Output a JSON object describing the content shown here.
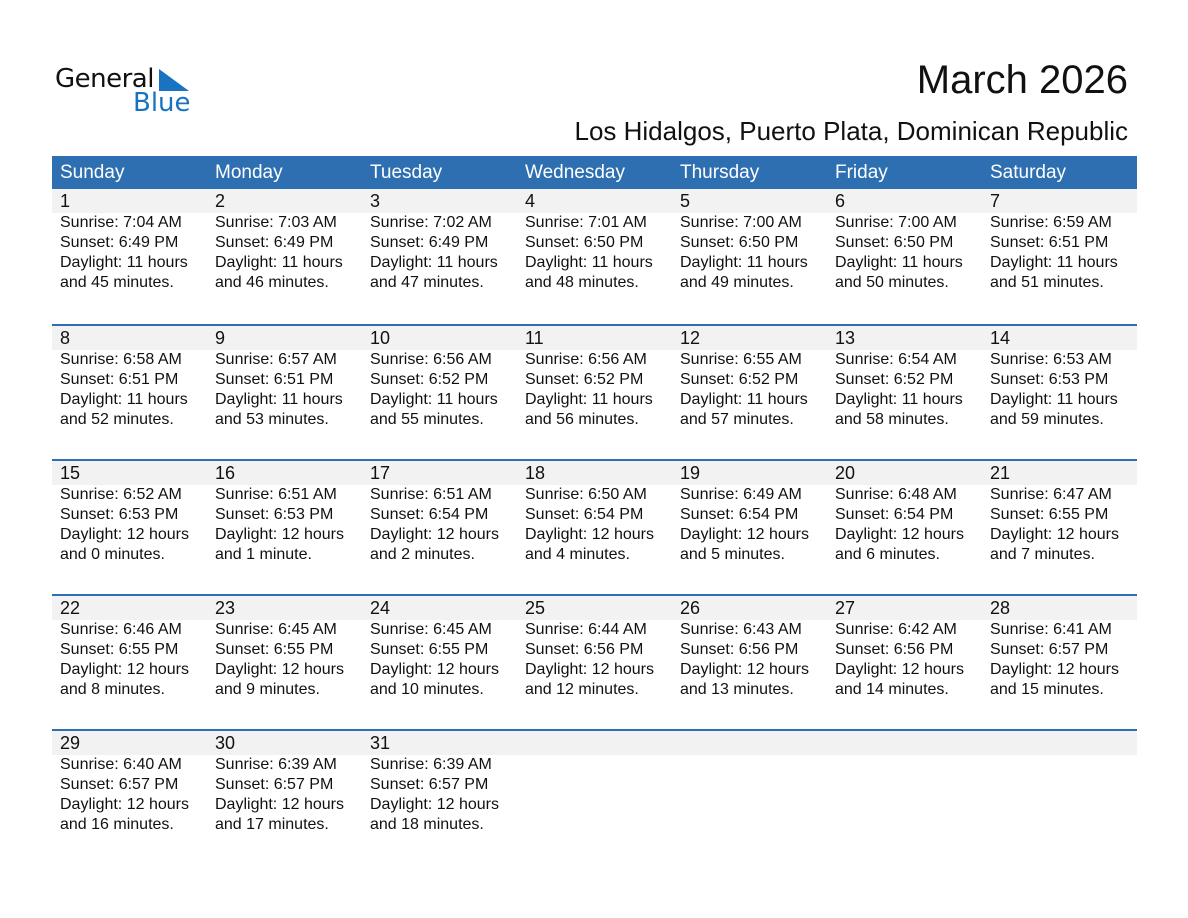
{
  "logo": {
    "line1": "General",
    "line2": "Blue",
    "accent": "#1a73c0"
  },
  "title": "March 2026",
  "location": "Los Hidalgos, Puerto Plata, Dominican Republic",
  "header_color": "#2e6fb2",
  "weekdays": [
    "Sunday",
    "Monday",
    "Tuesday",
    "Wednesday",
    "Thursday",
    "Friday",
    "Saturday"
  ],
  "weeks": [
    [
      {
        "day": "1",
        "sunrise": "Sunrise: 7:04 AM",
        "sunset": "Sunset: 6:49 PM",
        "daylight": "Daylight: 11 hours",
        "minutes": "and 45 minutes."
      },
      {
        "day": "2",
        "sunrise": "Sunrise: 7:03 AM",
        "sunset": "Sunset: 6:49 PM",
        "daylight": "Daylight: 11 hours",
        "minutes": "and 46 minutes."
      },
      {
        "day": "3",
        "sunrise": "Sunrise: 7:02 AM",
        "sunset": "Sunset: 6:49 PM",
        "daylight": "Daylight: 11 hours",
        "minutes": "and 47 minutes."
      },
      {
        "day": "4",
        "sunrise": "Sunrise: 7:01 AM",
        "sunset": "Sunset: 6:50 PM",
        "daylight": "Daylight: 11 hours",
        "minutes": "and 48 minutes."
      },
      {
        "day": "5",
        "sunrise": "Sunrise: 7:00 AM",
        "sunset": "Sunset: 6:50 PM",
        "daylight": "Daylight: 11 hours",
        "minutes": "and 49 minutes."
      },
      {
        "day": "6",
        "sunrise": "Sunrise: 7:00 AM",
        "sunset": "Sunset: 6:50 PM",
        "daylight": "Daylight: 11 hours",
        "minutes": "and 50 minutes."
      },
      {
        "day": "7",
        "sunrise": "Sunrise: 6:59 AM",
        "sunset": "Sunset: 6:51 PM",
        "daylight": "Daylight: 11 hours",
        "minutes": "and 51 minutes."
      }
    ],
    [
      {
        "day": "8",
        "sunrise": "Sunrise: 6:58 AM",
        "sunset": "Sunset: 6:51 PM",
        "daylight": "Daylight: 11 hours",
        "minutes": "and 52 minutes."
      },
      {
        "day": "9",
        "sunrise": "Sunrise: 6:57 AM",
        "sunset": "Sunset: 6:51 PM",
        "daylight": "Daylight: 11 hours",
        "minutes": "and 53 minutes."
      },
      {
        "day": "10",
        "sunrise": "Sunrise: 6:56 AM",
        "sunset": "Sunset: 6:52 PM",
        "daylight": "Daylight: 11 hours",
        "minutes": "and 55 minutes."
      },
      {
        "day": "11",
        "sunrise": "Sunrise: 6:56 AM",
        "sunset": "Sunset: 6:52 PM",
        "daylight": "Daylight: 11 hours",
        "minutes": "and 56 minutes."
      },
      {
        "day": "12",
        "sunrise": "Sunrise: 6:55 AM",
        "sunset": "Sunset: 6:52 PM",
        "daylight": "Daylight: 11 hours",
        "minutes": "and 57 minutes."
      },
      {
        "day": "13",
        "sunrise": "Sunrise: 6:54 AM",
        "sunset": "Sunset: 6:52 PM",
        "daylight": "Daylight: 11 hours",
        "minutes": "and 58 minutes."
      },
      {
        "day": "14",
        "sunrise": "Sunrise: 6:53 AM",
        "sunset": "Sunset: 6:53 PM",
        "daylight": "Daylight: 11 hours",
        "minutes": "and 59 minutes."
      }
    ],
    [
      {
        "day": "15",
        "sunrise": "Sunrise: 6:52 AM",
        "sunset": "Sunset: 6:53 PM",
        "daylight": "Daylight: 12 hours",
        "minutes": "and 0 minutes."
      },
      {
        "day": "16",
        "sunrise": "Sunrise: 6:51 AM",
        "sunset": "Sunset: 6:53 PM",
        "daylight": "Daylight: 12 hours",
        "minutes": "and 1 minute."
      },
      {
        "day": "17",
        "sunrise": "Sunrise: 6:51 AM",
        "sunset": "Sunset: 6:54 PM",
        "daylight": "Daylight: 12 hours",
        "minutes": "and 2 minutes."
      },
      {
        "day": "18",
        "sunrise": "Sunrise: 6:50 AM",
        "sunset": "Sunset: 6:54 PM",
        "daylight": "Daylight: 12 hours",
        "minutes": "and 4 minutes."
      },
      {
        "day": "19",
        "sunrise": "Sunrise: 6:49 AM",
        "sunset": "Sunset: 6:54 PM",
        "daylight": "Daylight: 12 hours",
        "minutes": "and 5 minutes."
      },
      {
        "day": "20",
        "sunrise": "Sunrise: 6:48 AM",
        "sunset": "Sunset: 6:54 PM",
        "daylight": "Daylight: 12 hours",
        "minutes": "and 6 minutes."
      },
      {
        "day": "21",
        "sunrise": "Sunrise: 6:47 AM",
        "sunset": "Sunset: 6:55 PM",
        "daylight": "Daylight: 12 hours",
        "minutes": "and 7 minutes."
      }
    ],
    [
      {
        "day": "22",
        "sunrise": "Sunrise: 6:46 AM",
        "sunset": "Sunset: 6:55 PM",
        "daylight": "Daylight: 12 hours",
        "minutes": "and 8 minutes."
      },
      {
        "day": "23",
        "sunrise": "Sunrise: 6:45 AM",
        "sunset": "Sunset: 6:55 PM",
        "daylight": "Daylight: 12 hours",
        "minutes": "and 9 minutes."
      },
      {
        "day": "24",
        "sunrise": "Sunrise: 6:45 AM",
        "sunset": "Sunset: 6:55 PM",
        "daylight": "Daylight: 12 hours",
        "minutes": "and 10 minutes."
      },
      {
        "day": "25",
        "sunrise": "Sunrise: 6:44 AM",
        "sunset": "Sunset: 6:56 PM",
        "daylight": "Daylight: 12 hours",
        "minutes": "and 12 minutes."
      },
      {
        "day": "26",
        "sunrise": "Sunrise: 6:43 AM",
        "sunset": "Sunset: 6:56 PM",
        "daylight": "Daylight: 12 hours",
        "minutes": "and 13 minutes."
      },
      {
        "day": "27",
        "sunrise": "Sunrise: 6:42 AM",
        "sunset": "Sunset: 6:56 PM",
        "daylight": "Daylight: 12 hours",
        "minutes": "and 14 minutes."
      },
      {
        "day": "28",
        "sunrise": "Sunrise: 6:41 AM",
        "sunset": "Sunset: 6:57 PM",
        "daylight": "Daylight: 12 hours",
        "minutes": "and 15 minutes."
      }
    ],
    [
      {
        "day": "29",
        "sunrise": "Sunrise: 6:40 AM",
        "sunset": "Sunset: 6:57 PM",
        "daylight": "Daylight: 12 hours",
        "minutes": "and 16 minutes."
      },
      {
        "day": "30",
        "sunrise": "Sunrise: 6:39 AM",
        "sunset": "Sunset: 6:57 PM",
        "daylight": "Daylight: 12 hours",
        "minutes": "and 17 minutes."
      },
      {
        "day": "31",
        "sunrise": "Sunrise: 6:39 AM",
        "sunset": "Sunset: 6:57 PM",
        "daylight": "Daylight: 12 hours",
        "minutes": "and 18 minutes."
      },
      null,
      null,
      null,
      null
    ]
  ]
}
